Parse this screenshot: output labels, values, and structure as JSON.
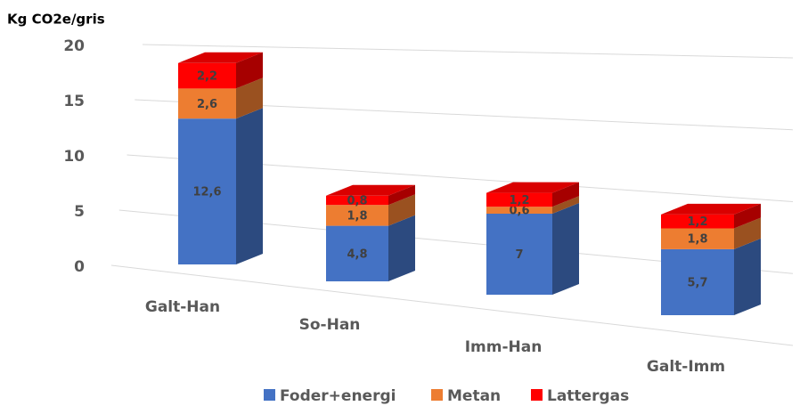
{
  "chart_data": {
    "type": "bar3d_stacked",
    "y_label": "Kg CO2e/gris",
    "categories": [
      "Galt-Han",
      "So-Han",
      "Imm-Han",
      "Galt-Imm"
    ],
    "series": [
      {
        "name": "Foder+energi",
        "color": "#4472c4",
        "values": [
          12.6,
          4.8,
          7,
          5.7
        ],
        "value_labels": [
          "12,6",
          "4,8",
          "7",
          "5,7"
        ]
      },
      {
        "name": "Metan",
        "color": "#ed7d31",
        "values": [
          2.6,
          1.8,
          0.6,
          1.8
        ],
        "value_labels": [
          "2,6",
          "1,8",
          "0,6",
          "1,8"
        ]
      },
      {
        "name": "Lattergas",
        "color": "#ff0000",
        "values": [
          2.2,
          0.8,
          1.2,
          1.2
        ],
        "value_labels": [
          "2,2",
          "0,8",
          "1,2",
          "1,2"
        ]
      }
    ],
    "ylim": [
      0,
      20
    ],
    "yticks": [
      0,
      5,
      10,
      15,
      20
    ],
    "grid": true,
    "legend": "bottom"
  }
}
